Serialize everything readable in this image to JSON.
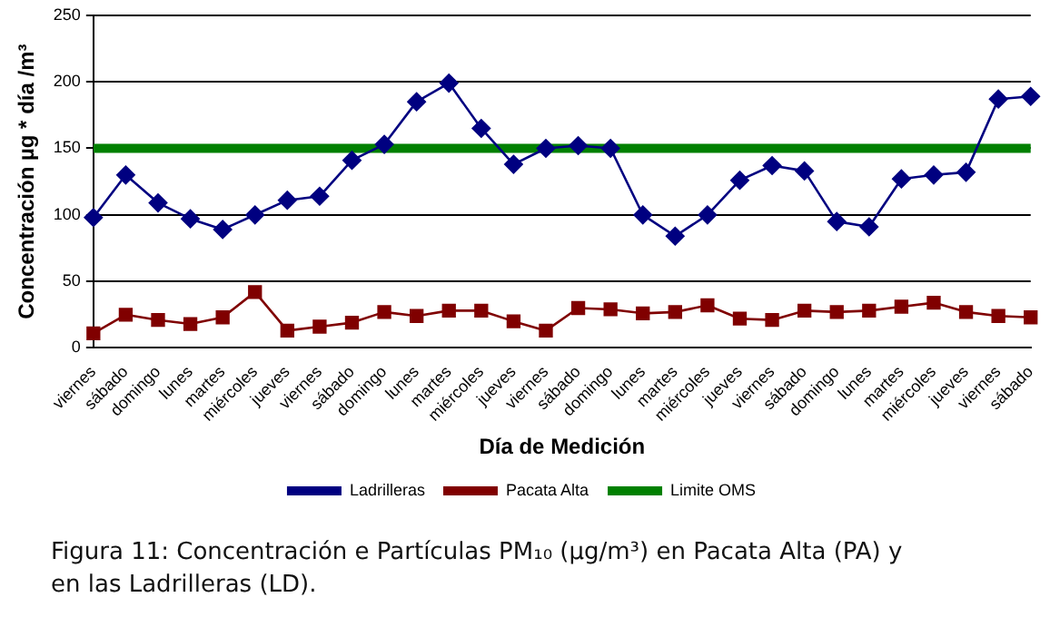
{
  "chart_data": {
    "type": "line",
    "xlabel": "Día de Medición",
    "ylabel": "Concentración µg * día /m³",
    "categories": [
      "viernes",
      "sábado",
      "domingo",
      "lunes",
      "martes",
      "miércoles",
      "jueves",
      "viernes",
      "sábado",
      "domingo",
      "lunes",
      "martes",
      "miércoles",
      "jueves",
      "viernes",
      "sábado",
      "domingo",
      "lunes",
      "martes",
      "miércoles",
      "jueves",
      "viernes",
      "sábado",
      "domingo",
      "lunes",
      "martes",
      "miércoles",
      "jueves",
      "viernes",
      "sábado"
    ],
    "series": [
      {
        "name": "Ladrilleras",
        "color": "#000080",
        "marker": "diamond",
        "values": [
          98,
          130,
          109,
          97,
          89,
          100,
          111,
          114,
          141,
          153,
          185,
          199,
          165,
          138,
          150,
          152,
          150,
          100,
          84,
          100,
          126,
          137,
          133,
          95,
          91,
          127,
          130,
          132,
          187,
          189
        ]
      },
      {
        "name": "Pacata Alta",
        "color": "#800000",
        "marker": "square",
        "values": [
          11,
          25,
          21,
          18,
          23,
          42,
          13,
          16,
          19,
          27,
          24,
          28,
          28,
          20,
          13,
          30,
          29,
          26,
          27,
          32,
          22,
          21,
          28,
          27,
          28,
          31,
          34,
          27,
          24,
          23
        ]
      },
      {
        "name": "Limite OMS",
        "color": "#008000",
        "marker": "none",
        "values": [
          150,
          150,
          150,
          150,
          150,
          150,
          150,
          150,
          150,
          150,
          150,
          150,
          150,
          150,
          150,
          150,
          150,
          150,
          150,
          150,
          150,
          150,
          150,
          150,
          150,
          150,
          150,
          150,
          150,
          150
        ]
      }
    ],
    "ylim": [
      0,
      250
    ],
    "yticks": [
      0,
      50,
      100,
      150,
      200,
      250
    ],
    "grid": "y",
    "legend": "bottom",
    "annotations": [
      "Figura 11:   Concentración e Partículas PM₁₀ (µg/m³) en Pacata Alta (PA) y en las Ladrilleras (LD)."
    ]
  }
}
